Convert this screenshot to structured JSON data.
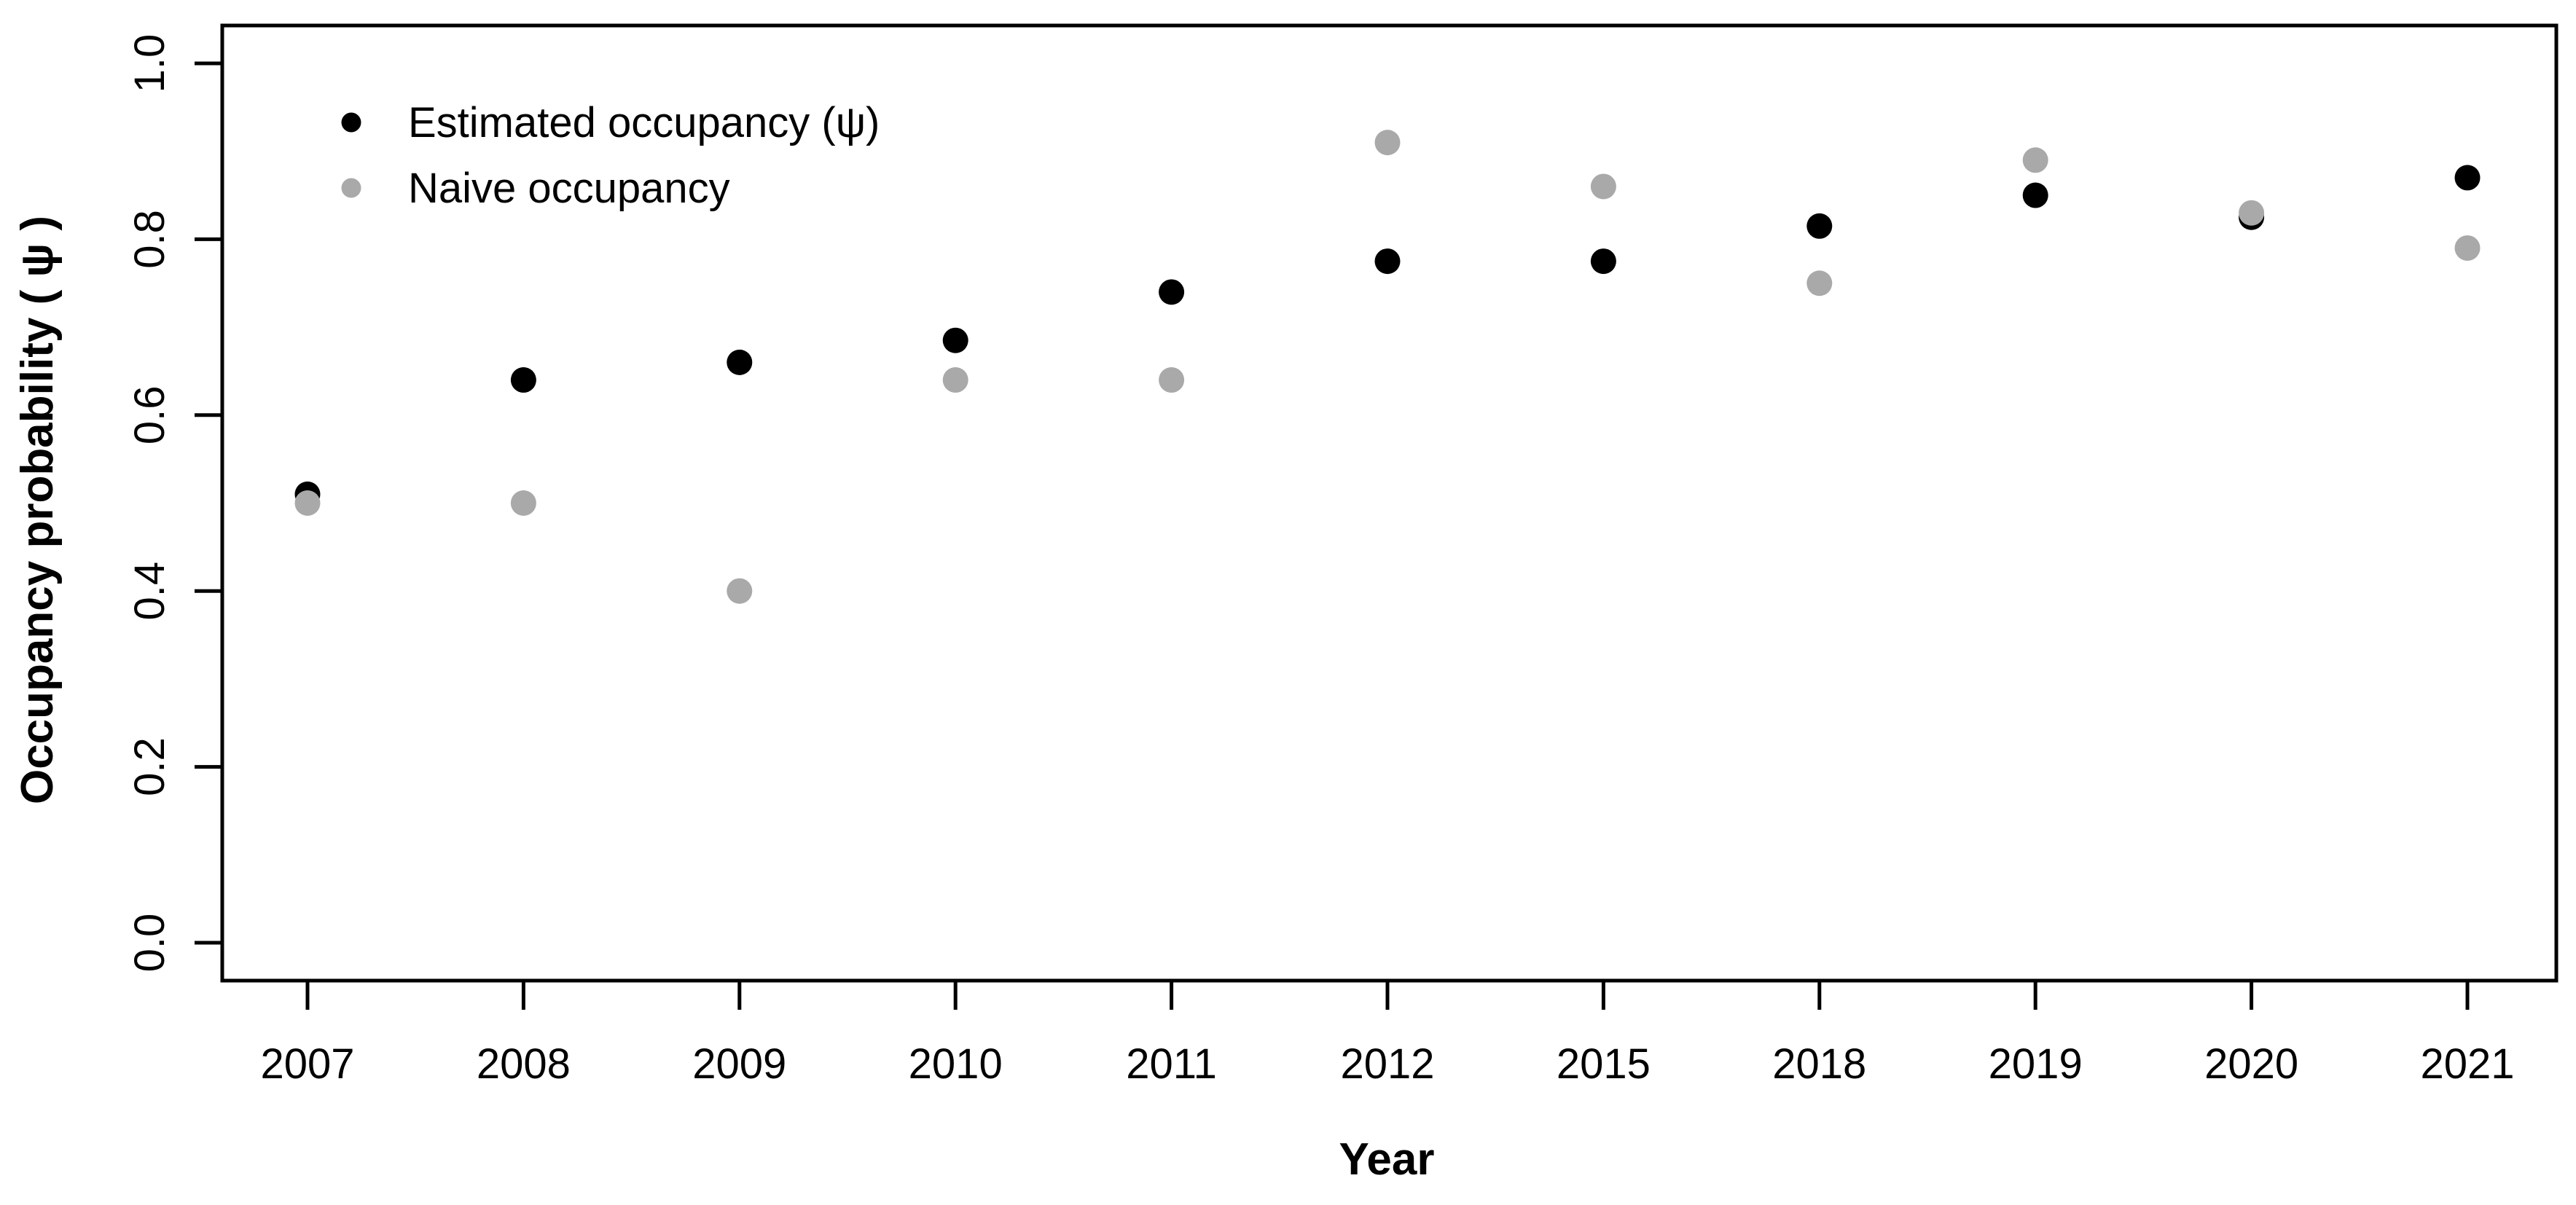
{
  "figure": {
    "background_color": "#ffffff",
    "axis_color": "#000000"
  },
  "y_axis": {
    "label": "Occupancy probability ( ψ )",
    "tick_labels": [
      "0.0",
      "0.2",
      "0.4",
      "0.6",
      "0.8",
      "1.0"
    ],
    "tick_values": [
      0.0,
      0.2,
      0.4,
      0.6,
      0.8,
      1.0
    ]
  },
  "x_axis": {
    "label": "Year",
    "tick_labels": [
      "2007",
      "2008",
      "2009",
      "2010",
      "2011",
      "2012",
      "2015",
      "2018",
      "2019",
      "2020",
      "2021"
    ]
  },
  "legend": {
    "items": [
      {
        "label": "Estimated occupancy (ψ)",
        "color": "#000000"
      },
      {
        "label": "Naive occupancy",
        "color": "#a9a9a9"
      }
    ]
  },
  "chart_data": {
    "type": "scatter",
    "title": "",
    "xlabel": "Year",
    "ylabel": "Occupancy probability ( ψ )",
    "ylim": [
      0.0,
      1.0
    ],
    "grid": false,
    "legend_position": "top-left",
    "categories": [
      "2007",
      "2008",
      "2009",
      "2010",
      "2011",
      "2012",
      "2015",
      "2018",
      "2019",
      "2020",
      "2021"
    ],
    "series": [
      {
        "name": "Estimated occupancy (ψ)",
        "color": "#000000",
        "values": [
          0.51,
          0.64,
          0.66,
          0.685,
          0.74,
          0.775,
          0.775,
          0.815,
          0.85,
          0.825,
          0.87
        ]
      },
      {
        "name": "Naive occupancy",
        "color": "#a9a9a9",
        "values": [
          0.5,
          0.5,
          0.4,
          0.64,
          0.64,
          0.91,
          0.86,
          0.75,
          0.89,
          0.83,
          0.79
        ]
      }
    ]
  }
}
